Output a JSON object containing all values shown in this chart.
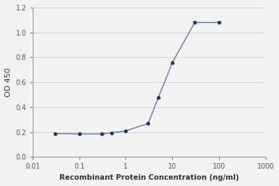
{
  "x": [
    0.03,
    0.1,
    0.3,
    0.5,
    1.0,
    3.0,
    5.0,
    10.0,
    30.0,
    100.0
  ],
  "y": [
    0.19,
    0.185,
    0.185,
    0.195,
    0.21,
    0.27,
    0.48,
    0.76,
    1.08,
    1.08
  ],
  "line_color": "#6070a0",
  "marker_color": "#2a3560",
  "marker_size": 3.5,
  "line_width": 1.0,
  "xlabel": "Recombinant Protein Concentration (ng/ml)",
  "ylabel": "OD 450",
  "xlim": [
    0.01,
    1000
  ],
  "ylim": [
    0,
    1.2
  ],
  "yticks": [
    0,
    0.2,
    0.4,
    0.6,
    0.8,
    1.0,
    1.2
  ],
  "xtick_labels": [
    "0.01",
    "0.1",
    "1",
    "10",
    "100",
    "1000"
  ],
  "xtick_vals": [
    0.01,
    0.1,
    1,
    10,
    100,
    1000
  ],
  "bg_color": "#f2f2f2",
  "plot_bg_color": "#f2f2f2",
  "grid_color": "#d0d0d0",
  "spine_color": "#888888",
  "tick_color": "#555555",
  "label_color": "#333333",
  "xlabel_fontsize": 7.5,
  "ylabel_fontsize": 8,
  "tick_fontsize": 7
}
